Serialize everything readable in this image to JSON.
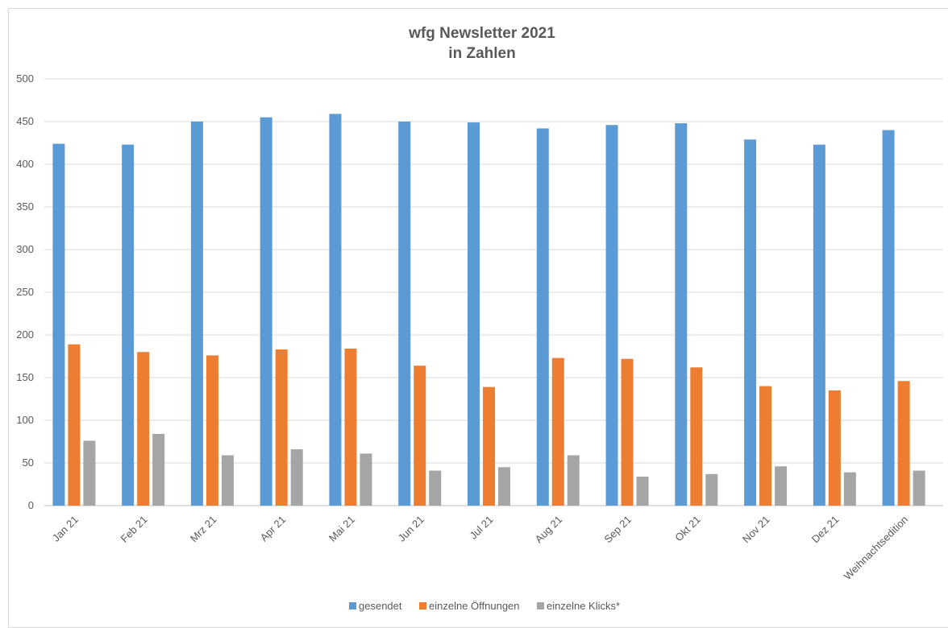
{
  "chart_data": {
    "type": "bar",
    "title": "wfg Newsletter 2021",
    "subtitle": "in Zahlen",
    "categories": [
      "Jan 21",
      "Feb 21",
      "Mrz 21",
      "Apr 21",
      "Mai 21",
      "Jun 21",
      "Jul 21",
      "Aug 21",
      "Sep 21",
      "Okt 21",
      "Nov 21",
      "Dez 21",
      "Weihnachtsedition"
    ],
    "series": [
      {
        "name": "gesendet",
        "color": "#5b9bd5",
        "values": [
          424,
          423,
          450,
          455,
          459,
          450,
          449,
          442,
          446,
          448,
          429,
          423,
          440
        ]
      },
      {
        "name": "einzelne Öffnungen",
        "color": "#ed7d31",
        "values": [
          189,
          180,
          176,
          183,
          184,
          164,
          139,
          173,
          172,
          162,
          140,
          135,
          146
        ]
      },
      {
        "name": "einzelne Klicks*",
        "color": "#a5a5a5",
        "values": [
          76,
          84,
          59,
          66,
          61,
          41,
          45,
          59,
          34,
          37,
          46,
          39,
          41
        ]
      }
    ],
    "yticks": [
      "0",
      "50",
      "100",
      "150",
      "200",
      "250",
      "300",
      "350",
      "400",
      "450",
      "500"
    ],
    "ylim": [
      0,
      500
    ],
    "grid": true,
    "legend_position": "bottom"
  }
}
